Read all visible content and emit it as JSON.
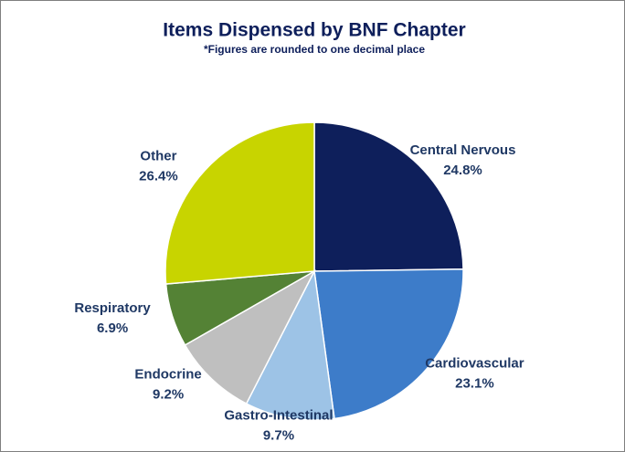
{
  "chart_data": {
    "type": "pie",
    "title": "Items Dispensed by BNF Chapter",
    "subtitle": "*Figures are rounded to one decimal place",
    "categories": [
      "Central Nervous",
      "Cardiovascular",
      "Gastro-Intestinal",
      "Endocrine",
      "Respiratory",
      "Other"
    ],
    "values": [
      24.8,
      23.1,
      9.7,
      9.2,
      6.9,
      26.4
    ],
    "value_labels": [
      "24.8%",
      "23.1%",
      "9.7%",
      "9.2%",
      "6.9%",
      "26.4%"
    ],
    "colors": [
      "#0e1f5b",
      "#3d7cc9",
      "#9dc3e6",
      "#bfbfbf",
      "#548235",
      "#c8d400"
    ]
  }
}
